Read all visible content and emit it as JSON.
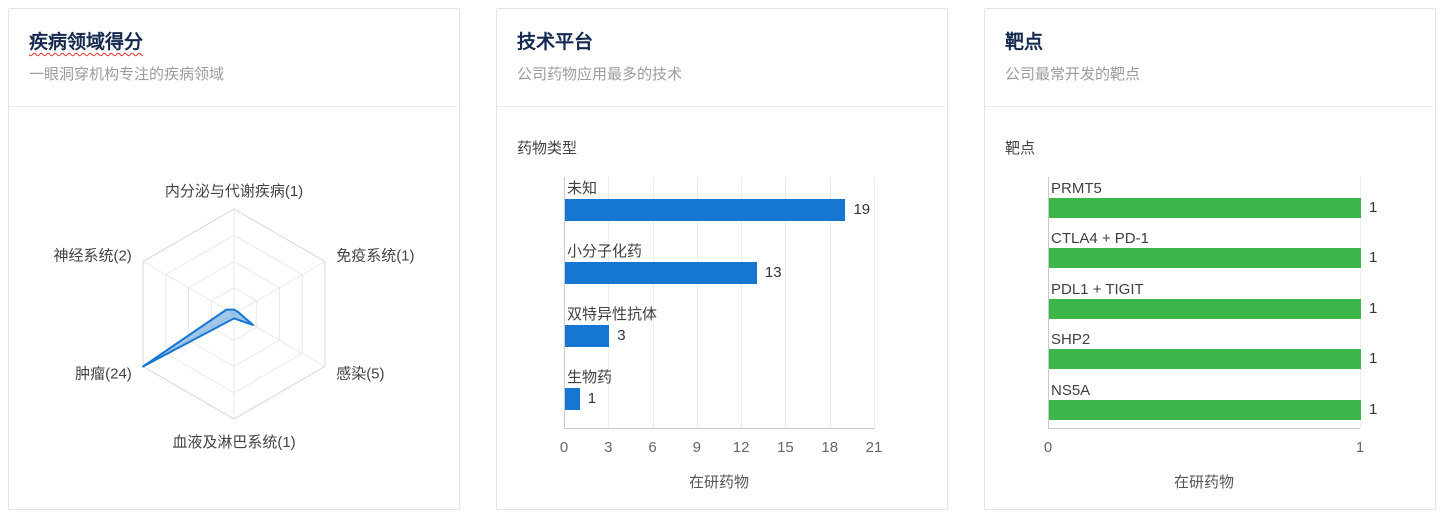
{
  "cards": [
    {
      "title": "疾病领域得分",
      "subtitle": "一眼洞穿机构专注的疾病领域"
    },
    {
      "title": "技术平台",
      "subtitle": "公司药物应用最多的技术"
    },
    {
      "title": "靶点",
      "subtitle": "公司最常开发的靶点"
    }
  ],
  "chart_data": [
    {
      "type": "radar",
      "title": "疾病领域得分",
      "max": 24,
      "levels": 4,
      "indicators": [
        {
          "label": "内分泌与代谢疾病(1)",
          "value": 1
        },
        {
          "label": "免疫系统(1)",
          "value": 1
        },
        {
          "label": "感染(5)",
          "value": 5
        },
        {
          "label": "血液及淋巴系统(1)",
          "value": 1
        },
        {
          "label": "肿瘤(24)",
          "value": 24
        },
        {
          "label": "神经系统(2)",
          "value": 2
        }
      ],
      "stroke": "#1677d2",
      "fill": "rgba(22,119,210,0.4)"
    },
    {
      "type": "bar",
      "orientation": "horizontal",
      "title": "技术平台",
      "axis_title": "药物类型",
      "categories": [
        "未知",
        "小分子化药",
        "双特异性抗体",
        "生物药"
      ],
      "values": [
        19,
        13,
        3,
        1
      ],
      "xticks": [
        0,
        3,
        6,
        9,
        12,
        15,
        18,
        21
      ],
      "xmax": 21,
      "xlabel": "在研药物",
      "bar_color": "#1677d2"
    },
    {
      "type": "bar",
      "orientation": "horizontal",
      "title": "靶点",
      "axis_title": "靶点",
      "categories": [
        "PRMT5",
        "CTLA4 + PD-1",
        "PDL1 + TIGIT",
        "SHP2",
        "NS5A"
      ],
      "values": [
        1,
        1,
        1,
        1,
        1
      ],
      "xticks": [
        0,
        1
      ],
      "xmax": 1,
      "xlabel": "在研药物",
      "bar_color": "#3cb549"
    }
  ]
}
